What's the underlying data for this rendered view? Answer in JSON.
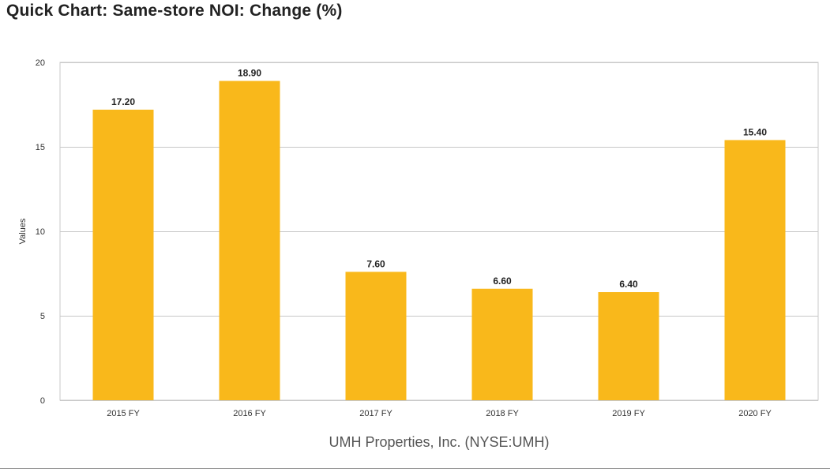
{
  "page": {
    "title": "Quick Chart: Same-store NOI: Change (%)"
  },
  "colors": {
    "bar": "#F9B81B",
    "grid": "#c8c8c8",
    "axis_text": "#333333",
    "label_text": "#222222",
    "subtitle_text": "#555555"
  },
  "chart_data": {
    "type": "bar",
    "title": "Quick Chart: Same-store NOI: Change (%)",
    "subtitle": "UMH Properties, Inc. (NYSE:UMH)",
    "xlabel": "UMH Properties, Inc. (NYSE:UMH)",
    "ylabel": "Values",
    "ylim": [
      0,
      20
    ],
    "yticks": [
      0,
      5,
      10,
      15,
      20
    ],
    "grid": true,
    "categories": [
      "2015 FY",
      "2016 FY",
      "2017 FY",
      "2018 FY",
      "2019 FY",
      "2020 FY"
    ],
    "values": [
      17.2,
      18.9,
      7.6,
      6.6,
      6.4,
      15.4
    ],
    "value_labels": [
      "17.20",
      "18.90",
      "7.60",
      "6.60",
      "6.40",
      "15.40"
    ]
  }
}
